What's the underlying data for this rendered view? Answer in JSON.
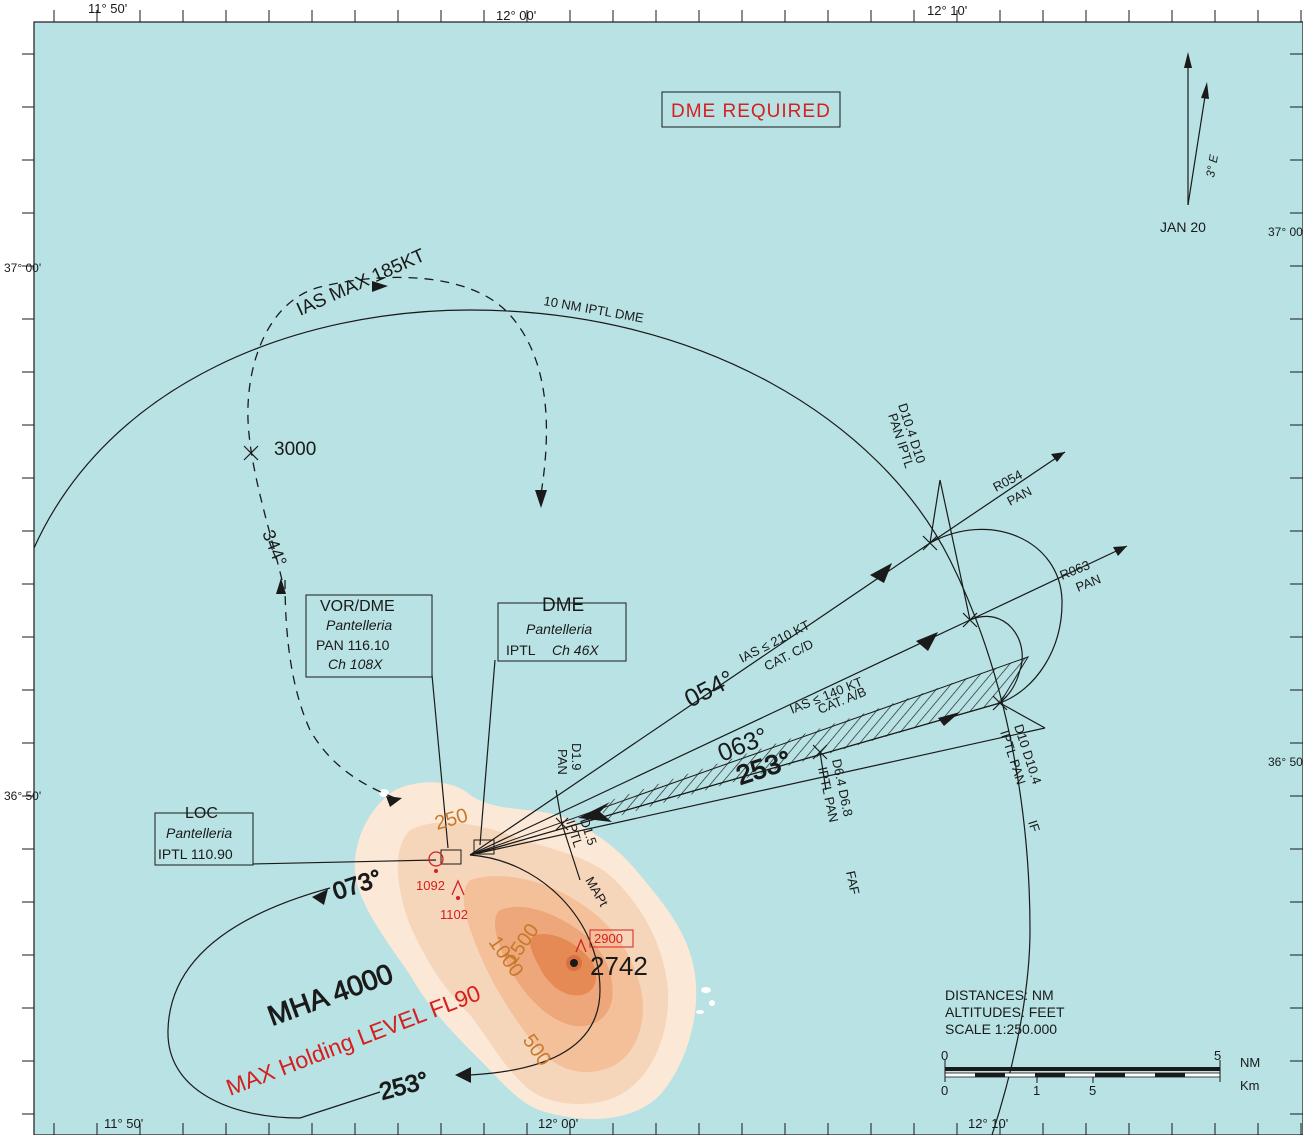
{
  "colors": {
    "sea": "#b8e2e3",
    "land_light": "#fbe8d6",
    "land_mid": "#f6c9a3",
    "land_dark": "#eea77a",
    "land_peak": "#e58a55",
    "red": "#d42020",
    "orange": "#c8782a",
    "ink": "#1a1a1a"
  },
  "border_labels": {
    "lon_top_1150": "11° 50'",
    "lon_top_1200": "12° 00'",
    "lon_top_1210": "12° 10'",
    "lon_bot_1150": "11° 50'",
    "lon_bot_1200": "12° 00'",
    "lon_bot_1210": "12° 10'",
    "lat_left_3700": "37° 00'",
    "lat_left_3650": "36° 50'",
    "lat_right_3700": "37° 00'",
    "lat_right_3650": "36° 50'"
  },
  "dme_required": "DME REQUIRED",
  "north_arrow": {
    "variation": "3° E",
    "date": "JAN 20"
  },
  "holding": {
    "ias": "IAS MAX 185KT",
    "altitude": "3000",
    "inbound": "344°"
  },
  "arc_label": "10 NM IPTL DME",
  "vor_box": {
    "title": "VOR/DME",
    "name": "Pantelleria",
    "freq": "PAN 116.10",
    "channel": "Ch 108X"
  },
  "dme_box": {
    "title": "DME",
    "name": "Pantelleria",
    "ident": "IPTL",
    "channel": "Ch 46X"
  },
  "loc_box": {
    "title": "LOC",
    "name": "Pantelleria",
    "freq": "IPTL 110.90"
  },
  "fixes": {
    "d10_4_top": "D10.4 D10",
    "pan_iptl_top": "PAN IPTL",
    "r054": "R054",
    "r054_pan": "PAN",
    "r063": "R063",
    "r063_pan": "PAN",
    "d10_right": "D10 D10.4",
    "iptl_pan_right": "IPTL PAN",
    "if": "IF",
    "d6_4": "D6.4 D6.8",
    "iptl_pan_mid": "IPTL PAN",
    "faf": "FAF",
    "d1_9": "D1.9",
    "pan_left": "PAN",
    "d1_5": "D1.5",
    "iptl_mid": "IPTL",
    "mapt": "MAPt"
  },
  "tracks": {
    "t054": "054°",
    "ias210": "IAS ≤ 210 KT",
    "catcd": "CAT. C/D",
    "t063": "063°",
    "ias140": "IAS ≤ 140 KT",
    "catab": "CAT. A/B",
    "t253": "253°",
    "t073": "073°",
    "t253b": "253°"
  },
  "terrain": {
    "c250": "250",
    "c500": "500",
    "c1000": "1000",
    "c1500": "1500",
    "obs1092": "1092",
    "obs1102": "1102",
    "obs2900": "2900",
    "peak": "2742"
  },
  "mha": "MHA 4000",
  "max_holding": "MAX Holding LEVEL FL90",
  "units": {
    "distances": "DISTANCES: NM",
    "altitudes": "ALTITUDES: FEET",
    "scale": "SCALE 1:250.000"
  },
  "scalebar": {
    "nm0": "0",
    "nm5": "5",
    "nm": "NM",
    "km0": "0",
    "km1": "1",
    "km5": "5",
    "km": "Km"
  }
}
